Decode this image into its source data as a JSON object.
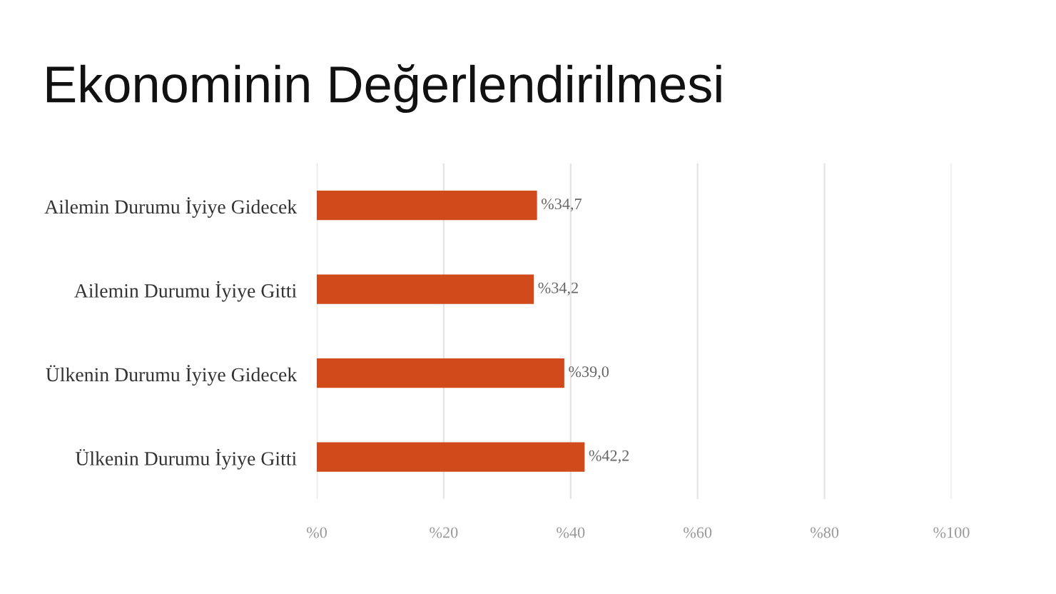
{
  "chart_data": {
    "type": "bar",
    "orientation": "horizontal",
    "title": "Ekonominin Değerlendirilmesi",
    "categories": [
      "Ailemin Durumu İyiye Gidecek",
      "Ailemin Durumu İyiye Gitti",
      "Ülkenin Durumu İyiye Gidecek",
      "Ülkenin Durumu İyiye Gitti"
    ],
    "values": [
      34.7,
      34.2,
      39.0,
      42.2
    ],
    "value_labels": [
      "%34,7",
      "%34,2",
      "%39,0",
      "%42,2"
    ],
    "color": "#d04a1c",
    "xlim": [
      0,
      100
    ],
    "xticks": [
      {
        "value": 0,
        "label": "%0"
      },
      {
        "value": 20,
        "label": "%20"
      },
      {
        "value": 40,
        "label": "%40"
      },
      {
        "value": 60,
        "label": "%60"
      },
      {
        "value": 80,
        "label": "%80"
      },
      {
        "value": 100,
        "label": "%100"
      }
    ],
    "grid": "x",
    "legend": false
  }
}
